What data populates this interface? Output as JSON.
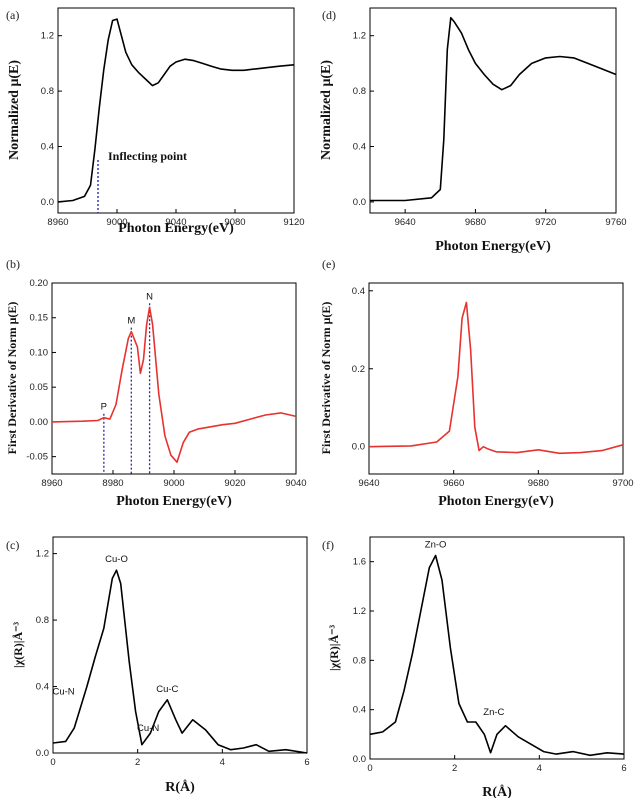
{
  "chart_data": [
    {
      "panel": "(a)",
      "type": "line",
      "xlabel": "Photon Energy(eV)",
      "ylabel": "Normalized μ(E)",
      "xlim": [
        8960,
        9120
      ],
      "ylim": [
        -0.08,
        1.4
      ],
      "xticks": [
        8960,
        9000,
        9040,
        9080,
        9120
      ],
      "yticks": [
        0.0,
        0.4,
        0.8,
        1.2
      ],
      "color": "#000000",
      "series": [
        {
          "x": [
            8960,
            8970,
            8978,
            8982,
            8985,
            8988,
            8991,
            8994,
            8997,
            9000,
            9003,
            9006,
            9010,
            9015,
            9020,
            9024,
            9028,
            9032,
            9036,
            9040,
            9046,
            9052,
            9058,
            9064,
            9070,
            9078,
            9086,
            9094,
            9102,
            9110,
            9120
          ],
          "y": [
            0.0,
            0.01,
            0.04,
            0.12,
            0.38,
            0.68,
            0.95,
            1.17,
            1.31,
            1.32,
            1.2,
            1.08,
            0.99,
            0.93,
            0.88,
            0.84,
            0.86,
            0.92,
            0.98,
            1.01,
            1.03,
            1.02,
            1.0,
            0.98,
            0.96,
            0.95,
            0.95,
            0.96,
            0.97,
            0.98,
            0.99
          ]
        }
      ],
      "annotations": [
        {
          "text": "Inflecting point",
          "x": 8985
        }
      ]
    },
    {
      "panel": "(d)",
      "type": "line",
      "xlabel": "Photon Energy(eV)",
      "ylabel": "Normalized μ(E)",
      "xlim": [
        9620,
        9760
      ],
      "ylim": [
        -0.08,
        1.4
      ],
      "xticks": [
        9640,
        9680,
        9720,
        9760
      ],
      "yticks": [
        0.0,
        0.4,
        0.8,
        1.2
      ],
      "color": "#000000",
      "series": [
        {
          "x": [
            9620,
            9640,
            9655,
            9660,
            9662,
            9664,
            9666,
            9668,
            9672,
            9676,
            9680,
            9685,
            9690,
            9695,
            9700,
            9705,
            9712,
            9720,
            9728,
            9736,
            9744,
            9752,
            9760
          ],
          "y": [
            0.01,
            0.01,
            0.03,
            0.09,
            0.45,
            1.1,
            1.33,
            1.3,
            1.22,
            1.1,
            1.0,
            0.92,
            0.85,
            0.81,
            0.84,
            0.92,
            1.0,
            1.04,
            1.05,
            1.04,
            1.0,
            0.96,
            0.92
          ]
        }
      ]
    },
    {
      "panel": "(b)",
      "type": "line",
      "xlabel": "Photon Energy(eV)",
      "ylabel": "First Derivative of Norm μ(E)",
      "xlim": [
        8960,
        9040
      ],
      "ylim": [
        -0.075,
        0.2
      ],
      "xticks": [
        8960,
        8980,
        9000,
        9020,
        9040
      ],
      "yticks": [
        -0.05,
        0.0,
        0.05,
        0.1,
        0.15,
        0.2
      ],
      "color": "#e8322f",
      "series": [
        {
          "x": [
            8960,
            8970,
            8975,
            8977,
            8979,
            8981,
            8983,
            8985,
            8986,
            8988,
            8989,
            8990,
            8991,
            8992,
            8993,
            8995,
            8997,
            8999,
            9001,
            9003,
            9005,
            9008,
            9012,
            9016,
            9020,
            9025,
            9030,
            9035,
            9040
          ],
          "y": [
            0.0,
            0.001,
            0.002,
            0.006,
            0.004,
            0.025,
            0.075,
            0.12,
            0.13,
            0.108,
            0.07,
            0.09,
            0.14,
            0.165,
            0.14,
            0.04,
            -0.02,
            -0.048,
            -0.058,
            -0.03,
            -0.015,
            -0.01,
            -0.007,
            -0.004,
            -0.002,
            0.004,
            0.01,
            0.013,
            0.008
          ]
        }
      ],
      "markers": [
        {
          "label": "P",
          "x": 8977
        },
        {
          "label": "M",
          "x": 8986
        },
        {
          "label": "N",
          "x": 8992
        }
      ]
    },
    {
      "panel": "(e)",
      "type": "line",
      "xlabel": "Photon Energy(eV)",
      "ylabel": "First Derivative of Norm μ(E)",
      "xlim": [
        9640,
        9700
      ],
      "ylim": [
        -0.07,
        0.42
      ],
      "xticks": [
        9640,
        9660,
        9680,
        9700
      ],
      "yticks": [
        0.0,
        0.2,
        0.4
      ],
      "color": "#e8322f",
      "series": [
        {
          "x": [
            9640,
            9650,
            9656,
            9659,
            9661,
            9662,
            9663,
            9664,
            9665,
            9666,
            9667,
            9668,
            9670,
            9675,
            9680,
            9685,
            9690,
            9695,
            9700
          ],
          "y": [
            0.0,
            0.002,
            0.012,
            0.04,
            0.18,
            0.33,
            0.37,
            0.25,
            0.05,
            -0.01,
            0.0,
            -0.005,
            -0.013,
            -0.015,
            -0.008,
            -0.017,
            -0.015,
            -0.01,
            0.005
          ]
        }
      ]
    },
    {
      "panel": "(c)",
      "type": "line",
      "xlabel": "R(Å)",
      "ylabel": "|χ(R)|Å⁻³",
      "xlim": [
        0,
        6
      ],
      "ylim": [
        0,
        1.3
      ],
      "xticks": [
        0,
        2,
        4,
        6
      ],
      "yticks": [
        0.0,
        0.4,
        0.8,
        1.2
      ],
      "color": "#000000",
      "series": [
        {
          "x": [
            0,
            0.3,
            0.5,
            0.8,
            1.0,
            1.2,
            1.4,
            1.5,
            1.6,
            1.8,
            1.95,
            2.1,
            2.3,
            2.5,
            2.7,
            2.9,
            3.05,
            3.3,
            3.6,
            3.9,
            4.2,
            4.5,
            4.8,
            5.1,
            5.5,
            6.0
          ],
          "y": [
            0.06,
            0.07,
            0.15,
            0.4,
            0.58,
            0.75,
            1.05,
            1.1,
            1.02,
            0.55,
            0.25,
            0.05,
            0.12,
            0.25,
            0.32,
            0.2,
            0.12,
            0.2,
            0.14,
            0.05,
            0.02,
            0.03,
            0.05,
            0.01,
            0.02,
            0.0
          ]
        }
      ],
      "annotations": [
        {
          "text": "Cu-O",
          "x": 1.5
        },
        {
          "text": "Cu-N",
          "x": 0.7
        },
        {
          "text": "Cu-N",
          "x": 2.2
        },
        {
          "text": "Cu-C",
          "x": 2.7
        }
      ]
    },
    {
      "panel": "(f)",
      "type": "line",
      "xlabel": "R(Å)",
      "ylabel": "|χ(R)|Å⁻³",
      "xlim": [
        0,
        6
      ],
      "ylim": [
        0,
        1.8
      ],
      "xticks": [
        0,
        2,
        4,
        6
      ],
      "yticks": [
        0.0,
        0.4,
        0.8,
        1.2,
        1.6
      ],
      "color": "#000000",
      "series": [
        {
          "x": [
            0,
            0.3,
            0.6,
            0.8,
            1.0,
            1.2,
            1.4,
            1.55,
            1.7,
            1.9,
            2.1,
            2.3,
            2.5,
            2.7,
            2.85,
            3.0,
            3.2,
            3.5,
            3.8,
            4.1,
            4.4,
            4.8,
            5.2,
            5.6,
            6.0
          ],
          "y": [
            0.2,
            0.22,
            0.3,
            0.55,
            0.85,
            1.2,
            1.55,
            1.65,
            1.45,
            0.9,
            0.45,
            0.3,
            0.3,
            0.2,
            0.05,
            0.2,
            0.27,
            0.18,
            0.12,
            0.06,
            0.04,
            0.06,
            0.03,
            0.05,
            0.04
          ]
        }
      ],
      "annotations": [
        {
          "text": "Zn-O",
          "x": 1.55
        },
        {
          "text": "Zn-C",
          "x": 2.5
        }
      ]
    }
  ]
}
